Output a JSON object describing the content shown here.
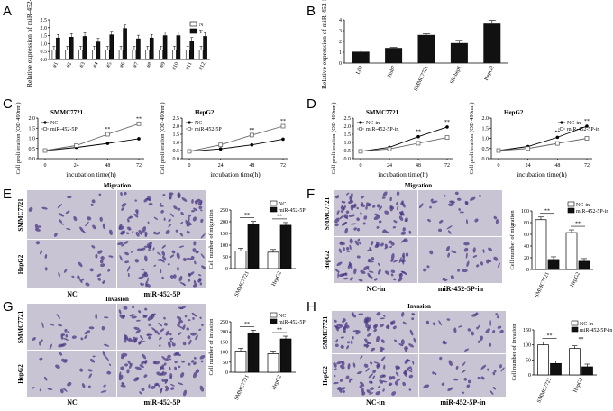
{
  "panels": {
    "A": {
      "label": "A"
    },
    "B": {
      "label": "B"
    },
    "C": {
      "label": "C"
    },
    "D": {
      "label": "D"
    },
    "E": {
      "label": "E"
    },
    "F": {
      "label": "F"
    },
    "G": {
      "label": "G"
    },
    "H": {
      "label": "H"
    }
  },
  "micro": {
    "E": {
      "title": "Migration",
      "row1": "SMMC7721",
      "row2": "HepG2",
      "col1": "NC",
      "col2": "miR-452-5P"
    },
    "F": {
      "title": "Migration",
      "row1": "SMMC7721",
      "row2": "HepG2",
      "col1": "NC-in",
      "col2": "miR-452-5P-in"
    },
    "G": {
      "title": "Invasion",
      "row1": "SMMC7721",
      "row2": "HepG2",
      "col1": "NC",
      "col2": "miR-452-5P"
    },
    "H": {
      "title": "Invasion",
      "row1": "SMMC7721",
      "row2": "HepG2",
      "col1": "NC-in",
      "col2": "miR-452-5P-in"
    }
  },
  "colors": {
    "white_bar": "#ffffff",
    "black_bar": "#111111",
    "grey_line": "#666666",
    "black_line": "#000000",
    "micro_bg": "#c9c4d4",
    "micro_cell": "#4b3a86"
  },
  "chart_data": [
    {
      "id": "A",
      "type": "bar",
      "ylabel": "Relative expression of miR-452-5P",
      "ylim": [
        0,
        2.5
      ],
      "yticks": [
        "0.0",
        "0.5",
        "1.0",
        "1.5",
        "2.0",
        "2.5"
      ],
      "categories": [
        "#1",
        "#2",
        "#3",
        "#4",
        "#5",
        "#6",
        "#7",
        "#8",
        "#9",
        "#10",
        "#11",
        "#12"
      ],
      "series": [
        {
          "name": "N",
          "values": [
            0.6,
            0.6,
            0.6,
            0.6,
            0.6,
            0.6,
            0.6,
            0.6,
            0.6,
            0.6,
            0.6,
            0.6
          ]
        },
        {
          "name": "T",
          "values": [
            1.35,
            1.4,
            1.45,
            1.1,
            1.55,
            1.95,
            1.3,
            1.35,
            1.5,
            1.5,
            1.15,
            1.45
          ]
        }
      ]
    },
    {
      "id": "B",
      "type": "bar",
      "ylabel": "Relative expression of miR-452-5P",
      "ylim": [
        0,
        4
      ],
      "yticks": [
        "0",
        "1",
        "2",
        "3",
        "4"
      ],
      "categories": [
        "L02",
        "Huh7",
        "SMMC7721",
        "SK-hep1",
        "HepG2"
      ],
      "values": [
        1.05,
        1.4,
        2.6,
        1.85,
        3.65
      ],
      "errors": [
        0.15,
        0.05,
        0.1,
        0.25,
        0.3
      ]
    },
    {
      "id": "C1",
      "type": "line",
      "title": "SMMC7721",
      "xlabel": "incubation time(h)",
      "ylabel": "Cell proliferation (OD 490nm)",
      "x": [
        0,
        24,
        48,
        72
      ],
      "xticks": [
        "0",
        "24",
        "48",
        "72"
      ],
      "ylim": [
        0,
        2.0
      ],
      "yticks": [
        "0.0",
        "0.5",
        "1.0",
        "1.5",
        "2.0"
      ],
      "series": [
        {
          "name": "NC",
          "values": [
            0.4,
            0.55,
            0.75,
            0.98
          ]
        },
        {
          "name": "miR-452-5P",
          "values": [
            0.4,
            0.65,
            1.2,
            1.72
          ]
        }
      ],
      "annotations": [
        "**",
        "**"
      ]
    },
    {
      "id": "C2",
      "type": "line",
      "title": "HepG2",
      "xlabel": "incubation time(h)",
      "ylabel": "Cell proliferation (OD 490nm)",
      "x": [
        0,
        24,
        48,
        72
      ],
      "xticks": [
        "0",
        "24",
        "48",
        "72"
      ],
      "ylim": [
        0,
        2.5
      ],
      "yticks": [
        "0.0",
        "0.5",
        "1.0",
        "1.5",
        "2.0",
        "2.5"
      ],
      "series": [
        {
          "name": "NC",
          "values": [
            0.45,
            0.6,
            0.85,
            1.2
          ]
        },
        {
          "name": "miR-452-5P",
          "values": [
            0.45,
            0.85,
            1.45,
            2.0
          ]
        }
      ],
      "annotations": [
        "**",
        "**"
      ]
    },
    {
      "id": "D1",
      "type": "line",
      "title": "SMMC7721",
      "xlabel": "incubation time(h)",
      "ylabel": "Cell proliferation (OD 490nm)",
      "x": [
        0,
        24,
        48,
        72
      ],
      "xticks": [
        "0",
        "24",
        "48",
        "72"
      ],
      "ylim": [
        0,
        2.5
      ],
      "yticks": [
        "0.0",
        "0.5",
        "1.0",
        "1.5",
        "2.0",
        "2.5"
      ],
      "series": [
        {
          "name": "NC-in",
          "values": [
            0.45,
            0.7,
            1.35,
            1.95
          ]
        },
        {
          "name": "miR-452-5P-in",
          "values": [
            0.45,
            0.6,
            0.95,
            1.3
          ]
        }
      ],
      "annotations": [
        "**",
        "**"
      ]
    },
    {
      "id": "D2",
      "type": "line",
      "title": "HepG2",
      "xlabel": "incubation time(h)",
      "ylabel": "Cell proliferation (OD 490nm)",
      "x": [
        0,
        24,
        48,
        72
      ],
      "xticks": [
        "0",
        "24",
        "48",
        "72"
      ],
      "ylim": [
        0,
        2.0
      ],
      "yticks": [
        "0.0",
        "0.5",
        "1.0",
        "1.5",
        "2.0"
      ],
      "series": [
        {
          "name": "NC-in",
          "values": [
            0.4,
            0.6,
            1.05,
            1.6
          ]
        },
        {
          "name": "miR-452-5P-in",
          "values": [
            0.4,
            0.5,
            0.75,
            1.0
          ]
        }
      ],
      "annotations": [
        "**",
        "**"
      ]
    },
    {
      "id": "E",
      "type": "bar",
      "ylabel": "Cell number of migration",
      "ylim": [
        0,
        250
      ],
      "yticks": [
        "0",
        "50",
        "100",
        "150",
        "200",
        "250"
      ],
      "categories": [
        "SMMC7721",
        "HepG2"
      ],
      "series": [
        {
          "name": "NC",
          "values": [
            75,
            70
          ]
        },
        {
          "name": "miR-452-5P",
          "values": [
            190,
            185
          ]
        }
      ],
      "annotations": [
        "**",
        "**"
      ]
    },
    {
      "id": "F",
      "type": "bar",
      "ylabel": "Cell number of migration",
      "ylim": [
        0,
        100
      ],
      "yticks": [
        "0",
        "20",
        "40",
        "60",
        "80",
        "100"
      ],
      "categories": [
        "SMMC7721",
        "HepG2"
      ],
      "series": [
        {
          "name": "NC-in",
          "values": [
            85,
            63
          ]
        },
        {
          "name": "miR-452-5P-in",
          "values": [
            17,
            14
          ]
        }
      ],
      "annotations": [
        "**",
        "**"
      ]
    },
    {
      "id": "G",
      "type": "bar",
      "ylabel": "Cell number of invasion",
      "ylim": [
        0,
        250
      ],
      "yticks": [
        "0",
        "50",
        "100",
        "150",
        "200",
        "250"
      ],
      "categories": [
        "SMMC7721",
        "HepG2"
      ],
      "series": [
        {
          "name": "NC",
          "values": [
            105,
            92
          ]
        },
        {
          "name": "miR-452-5P",
          "values": [
            195,
            165
          ]
        }
      ],
      "annotations": [
        "**",
        "**"
      ]
    },
    {
      "id": "H",
      "type": "bar",
      "ylabel": "Cell number of invasion",
      "ylim": [
        0,
        150
      ],
      "yticks": [
        "0",
        "50",
        "100",
        "150"
      ],
      "categories": [
        "SMMC7721",
        "HepG2"
      ],
      "series": [
        {
          "name": "NC-in",
          "values": [
            100,
            88
          ]
        },
        {
          "name": "miR-452-5P-in",
          "values": [
            38,
            27
          ]
        }
      ],
      "annotations": [
        "**",
        "**"
      ]
    }
  ]
}
